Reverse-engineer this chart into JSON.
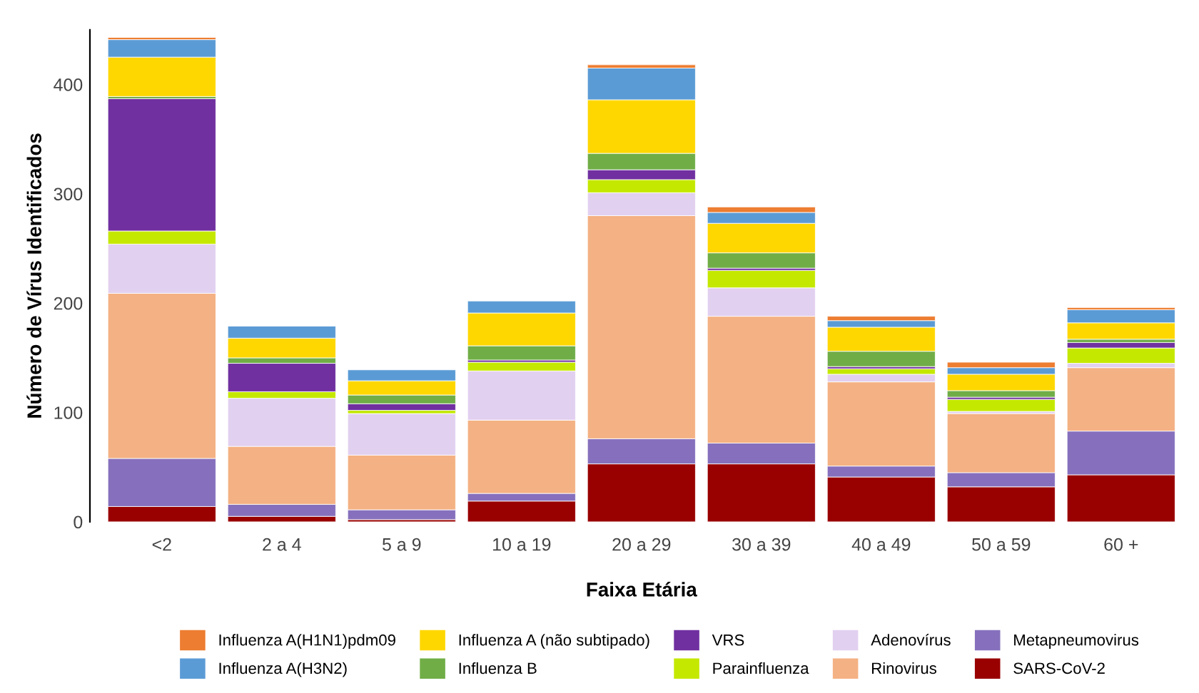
{
  "chart_data": {
    "type": "bar",
    "stacked": true,
    "xlabel": "Faixa Etária",
    "ylabel": "Número de Vírus Identificados",
    "categories": [
      "<2",
      "2 a 4",
      "5 a 9",
      "10 a 19",
      "20 a 29",
      "30 a 39",
      "40 a 49",
      "50 a 59",
      "60 +"
    ],
    "ylim": [
      0,
      450
    ],
    "yticks": [
      0,
      100,
      200,
      300,
      400
    ],
    "grid": false,
    "legend": "bottom",
    "series": [
      {
        "name": "SARS-CoV-2",
        "color": "#990000",
        "values": [
          14,
          5,
          2,
          19,
          53,
          53,
          41,
          32,
          43
        ]
      },
      {
        "name": "Metapneumovirus",
        "color": "#8670bd",
        "values": [
          44,
          11,
          9,
          7,
          23,
          19,
          10,
          13,
          40
        ]
      },
      {
        "name": "Rinovirus",
        "color": "#f4b183",
        "values": [
          151,
          53,
          50,
          67,
          204,
          116,
          77,
          54,
          58
        ]
      },
      {
        "name": "Adenovírus",
        "color": "#e2d0f0",
        "values": [
          45,
          44,
          38,
          45,
          21,
          26,
          7,
          2,
          4
        ]
      },
      {
        "name": "Parainfluenza",
        "color": "#c5e800",
        "values": [
          12,
          6,
          3,
          8,
          12,
          16,
          5,
          11,
          14
        ]
      },
      {
        "name": "VRS",
        "color": "#7030a0",
        "values": [
          121,
          26,
          6,
          2,
          9,
          2,
          2,
          2,
          5
        ]
      },
      {
        "name": "Influenza B",
        "color": "#70ad47",
        "values": [
          2,
          5,
          8,
          13,
          15,
          14,
          14,
          6,
          3
        ]
      },
      {
        "name": "Influenza A (não subtipado)",
        "color": "#ffd700",
        "values": [
          36,
          18,
          13,
          30,
          49,
          27,
          22,
          15,
          15
        ]
      },
      {
        "name": "Influenza A(H3N2)",
        "color": "#5b9bd5",
        "values": [
          16,
          11,
          10,
          11,
          29,
          10,
          6,
          6,
          12
        ]
      },
      {
        "name": "Influenza A(H1N1)pdm09",
        "color": "#ed7d31",
        "values": [
          2,
          null,
          null,
          null,
          3,
          5,
          4,
          5,
          2
        ]
      }
    ]
  }
}
